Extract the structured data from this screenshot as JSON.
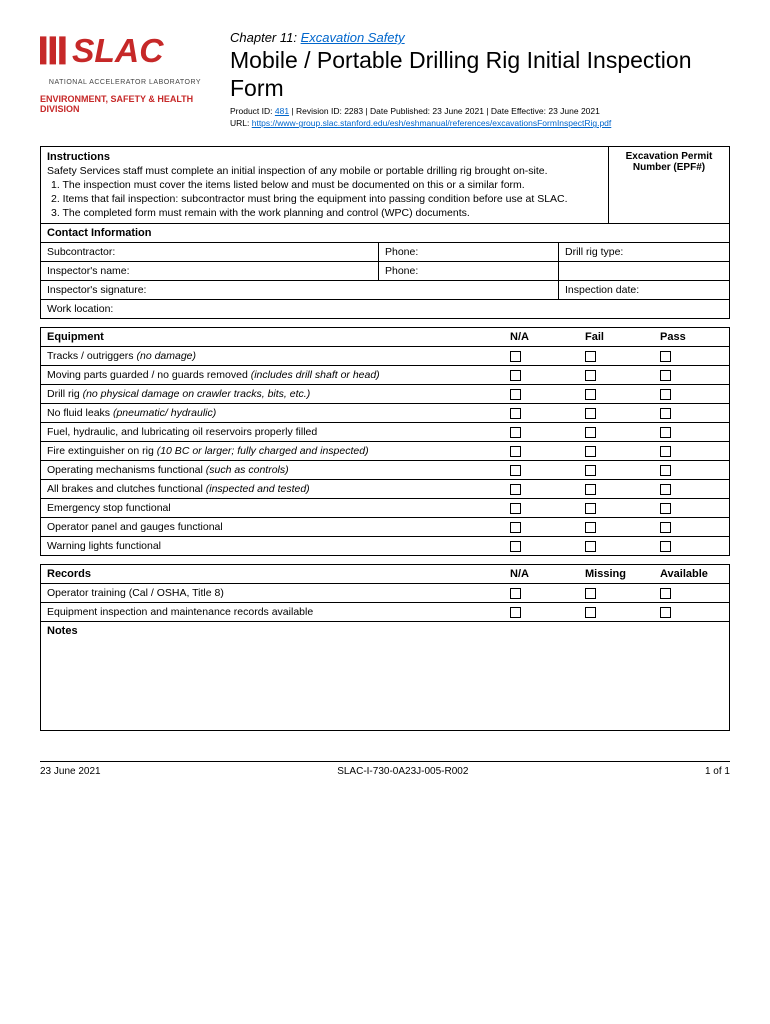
{
  "logo": {
    "text": "SLAC",
    "color": "#c62828",
    "subtitle": "NATIONAL ACCELERATOR LABORATORY"
  },
  "division": "ENVIRONMENT, SAFETY & HEALTH DIVISION",
  "chapter": {
    "prefix": "Chapter 11: ",
    "link": "Excavation Safety"
  },
  "title": "Mobile / Portable Drilling Rig Initial Inspection Form",
  "meta": {
    "product_id_label": "Product ID: ",
    "product_id": "481",
    "rest": " | Revision ID: 2283 | Date Published: 23 June 2021 | Date Effective: 23 June 2021"
  },
  "url": {
    "label": "URL: ",
    "link": "https://www-group.slac.stanford.edu/esh/eshmanual/references/excavationsFormInspectRig.pdf"
  },
  "instructions": {
    "title": "Instructions",
    "intro": "Safety Services staff must complete an initial inspection of any mobile or portable drilling rig brought on-site.",
    "items": [
      "1. The inspection must cover the items listed below and must be documented on this or a similar form.",
      "2. Items that fail inspection: subcontractor must bring the equipment into passing condition before use at SLAC.",
      "3. The completed form must remain with the work planning and control (WPC) documents."
    ]
  },
  "permit": {
    "line1": "Excavation Permit",
    "line2": "Number (EPF#)"
  },
  "contact": {
    "header": "Contact Information",
    "subcontractor": "Subcontractor:",
    "phone": "Phone:",
    "rig_type": "Drill rig type:",
    "inspector_name": "Inspector's name:",
    "inspector_sig": "Inspector's signature:",
    "inspection_date": "Inspection date:",
    "work_location": "Work location:"
  },
  "equipment": {
    "header": "Equipment",
    "cols": [
      "N/A",
      "Fail",
      "Pass"
    ],
    "rows": [
      {
        "text": "Tracks / outriggers ",
        "em": "(no damage)"
      },
      {
        "text": "Moving parts guarded / no guards removed ",
        "em": "(includes drill shaft or head)"
      },
      {
        "text": "Drill rig ",
        "em": "(no physical damage on crawler tracks, bits, etc.)"
      },
      {
        "text": "No fluid leaks ",
        "em": "(pneumatic/ hydraulic)"
      },
      {
        "text": "Fuel, hydraulic, and lubricating oil reservoirs properly filled",
        "em": ""
      },
      {
        "text": "Fire extinguisher on rig ",
        "em": "(10 BC or larger; fully charged and inspected)"
      },
      {
        "text": "Operating mechanisms functional ",
        "em": "(such as controls)"
      },
      {
        "text": "All brakes and clutches functional ",
        "em": "(inspected and tested)"
      },
      {
        "text": "Emergency stop functional",
        "em": ""
      },
      {
        "text": "Operator panel and gauges functional",
        "em": ""
      },
      {
        "text": "Warning lights functional",
        "em": ""
      }
    ]
  },
  "records": {
    "header": "Records",
    "cols": [
      "N/A",
      "Missing",
      "Available"
    ],
    "rows": [
      {
        "text": "Operator training (Cal / OSHA, Title 8)",
        "em": ""
      },
      {
        "text": "Equipment inspection and maintenance records available",
        "em": ""
      }
    ]
  },
  "notes_header": "Notes",
  "footer": {
    "date": "23 June 2021",
    "doc_id": "SLAC-I-730-0A23J-005-R002",
    "page": "1 of 1"
  }
}
